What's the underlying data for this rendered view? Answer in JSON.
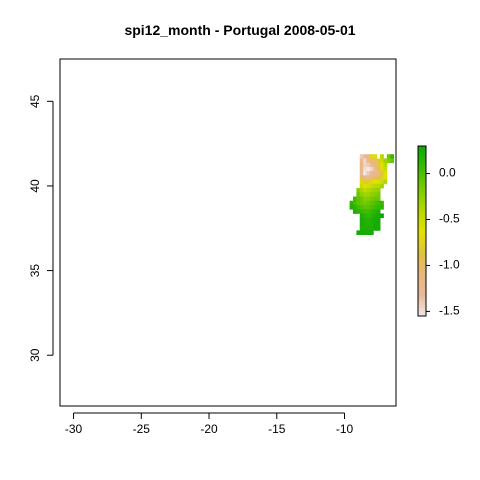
{
  "title": "spi12_month - Portugal 2008-05-01",
  "chart_data": {
    "type": "heatmap",
    "title": "spi12_month - Portugal 2008-05-01",
    "xlabel": "",
    "ylabel": "",
    "xlim": [
      -31.0,
      -6.2
    ],
    "ylim": [
      27.0,
      47.5
    ],
    "x_ticks": [
      -30,
      -25,
      -20,
      -15,
      -10
    ],
    "y_ticks": [
      30,
      35,
      40,
      45
    ],
    "grid": false,
    "legend": {
      "position": "right",
      "ticks": [
        0.0,
        -0.5,
        -1.0,
        -1.5
      ],
      "tick_labels": [
        "0.0",
        "-0.5",
        "-1.0",
        "-1.5"
      ],
      "range": [
        -1.55,
        0.3
      ],
      "colors": [
        "#f2e8e6",
        "#e9b99c",
        "#e8b87a",
        "#dfc23c",
        "#e4e100",
        "#b4d800",
        "#7ccb00",
        "#3bbb00",
        "#0ca708"
      ]
    },
    "cell_size_deg": 0.25,
    "rows": [
      {
        "lat": 41.75,
        "cells": [
          [
            -8.75,
            -1.4
          ],
          [
            -8.5,
            -1.3
          ],
          [
            -8.25,
            -1.1
          ],
          [
            -8.0,
            -0.7
          ],
          [
            -7.75,
            -0.6
          ],
          [
            -7.25,
            -0.4
          ],
          [
            -6.75,
            -0.1
          ],
          [
            -6.5,
            0.1
          ]
        ]
      },
      {
        "lat": 41.5,
        "cells": [
          [
            -8.75,
            -1.3
          ],
          [
            -8.5,
            -1.45
          ],
          [
            -8.25,
            -1.2
          ],
          [
            -8.0,
            -1.0
          ],
          [
            -7.75,
            -1.1
          ],
          [
            -7.5,
            -0.8
          ],
          [
            -7.25,
            -0.5
          ],
          [
            -7.0,
            -0.3
          ],
          [
            -6.75,
            -0.2
          ],
          [
            -6.5,
            -0.1
          ]
        ]
      },
      {
        "lat": 41.25,
        "cells": [
          [
            -8.75,
            -1.1
          ],
          [
            -8.5,
            -1.45
          ],
          [
            -8.25,
            -1.4
          ],
          [
            -8.0,
            -1.3
          ],
          [
            -7.75,
            -1.1
          ],
          [
            -7.5,
            -0.8
          ],
          [
            -7.25,
            -0.6
          ],
          [
            -7.0,
            -0.4
          ]
        ]
      },
      {
        "lat": 41.0,
        "cells": [
          [
            -8.75,
            -1.2
          ],
          [
            -8.5,
            -1.5
          ],
          [
            -8.25,
            -1.55
          ],
          [
            -8.0,
            -1.45
          ],
          [
            -7.75,
            -1.3
          ],
          [
            -7.5,
            -1.0
          ],
          [
            -7.25,
            -0.7
          ],
          [
            -7.0,
            -0.5
          ]
        ]
      },
      {
        "lat": 40.75,
        "cells": [
          [
            -8.75,
            -1.3
          ],
          [
            -8.5,
            -1.55
          ],
          [
            -8.25,
            -1.4
          ],
          [
            -8.0,
            -1.3
          ],
          [
            -7.75,
            -1.2
          ],
          [
            -7.5,
            -1.1
          ],
          [
            -7.25,
            -0.9
          ],
          [
            -7.0,
            -0.6
          ]
        ]
      },
      {
        "lat": 40.5,
        "cells": [
          [
            -8.75,
            -1.0
          ],
          [
            -8.5,
            -1.2
          ],
          [
            -8.25,
            -1.25
          ],
          [
            -8.0,
            -1.1
          ],
          [
            -7.75,
            -1.0
          ],
          [
            -7.5,
            -0.9
          ],
          [
            -7.25,
            -0.8
          ],
          [
            -7.0,
            -0.6
          ]
        ]
      },
      {
        "lat": 40.25,
        "cells": [
          [
            -8.75,
            -0.7
          ],
          [
            -8.5,
            -0.8
          ],
          [
            -8.25,
            -0.8
          ],
          [
            -8.0,
            -0.7
          ],
          [
            -7.75,
            -0.65
          ],
          [
            -7.5,
            -0.6
          ],
          [
            -7.25,
            -0.5
          ],
          [
            -7.0,
            -0.4
          ]
        ]
      },
      {
        "lat": 40.0,
        "cells": [
          [
            -8.75,
            -0.5
          ],
          [
            -8.5,
            -0.6
          ],
          [
            -8.25,
            -0.55
          ],
          [
            -8.0,
            -0.5
          ],
          [
            -7.75,
            -0.45
          ],
          [
            -7.5,
            -0.4
          ],
          [
            -7.25,
            -0.3
          ]
        ]
      },
      {
        "lat": 39.75,
        "cells": [
          [
            -9.0,
            -0.2
          ],
          [
            -8.75,
            -0.35
          ],
          [
            -8.5,
            -0.45
          ],
          [
            -8.25,
            -0.4
          ],
          [
            -8.0,
            -0.35
          ],
          [
            -7.75,
            -0.3
          ],
          [
            -7.5,
            -0.25
          ]
        ]
      },
      {
        "lat": 39.5,
        "cells": [
          [
            -9.0,
            -0.1
          ],
          [
            -8.75,
            -0.25
          ],
          [
            -8.5,
            -0.3
          ],
          [
            -8.25,
            -0.3
          ],
          [
            -8.0,
            -0.25
          ],
          [
            -7.75,
            -0.2
          ],
          [
            -7.5,
            -0.15
          ]
        ]
      },
      {
        "lat": 39.25,
        "cells": [
          [
            -9.25,
            0.05
          ],
          [
            -9.0,
            -0.05
          ],
          [
            -8.75,
            -0.1
          ],
          [
            -8.5,
            -0.2
          ],
          [
            -8.25,
            -0.2
          ],
          [
            -8.0,
            -0.15
          ],
          [
            -7.75,
            -0.1
          ],
          [
            -7.5,
            -0.1
          ]
        ]
      },
      {
        "lat": 39.0,
        "cells": [
          [
            -9.5,
            0.15
          ],
          [
            -9.25,
            0.05
          ],
          [
            -9.0,
            -0.05
          ],
          [
            -8.75,
            -0.1
          ],
          [
            -8.5,
            -0.15
          ],
          [
            -8.25,
            -0.1
          ],
          [
            -8.0,
            -0.05
          ],
          [
            -7.75,
            0.0
          ],
          [
            -7.5,
            0.05
          ],
          [
            -7.25,
            0.1
          ]
        ]
      },
      {
        "lat": 38.75,
        "cells": [
          [
            -9.5,
            0.2
          ],
          [
            -9.25,
            0.15
          ],
          [
            -9.0,
            0.05
          ],
          [
            -8.75,
            0.0
          ],
          [
            -8.5,
            -0.05
          ],
          [
            -8.25,
            -0.05
          ],
          [
            -8.0,
            0.0
          ],
          [
            -7.75,
            0.05
          ],
          [
            -7.5,
            0.1
          ],
          [
            -7.25,
            0.15
          ]
        ]
      },
      {
        "lat": 38.5,
        "cells": [
          [
            -9.25,
            0.2
          ],
          [
            -9.0,
            0.15
          ],
          [
            -8.75,
            0.1
          ],
          [
            -8.5,
            0.05
          ],
          [
            -8.25,
            0.05
          ],
          [
            -8.0,
            0.1
          ],
          [
            -7.75,
            0.15
          ],
          [
            -7.5,
            0.2
          ]
        ]
      },
      {
        "lat": 38.25,
        "cells": [
          [
            -8.75,
            0.2
          ],
          [
            -8.5,
            0.15
          ],
          [
            -8.25,
            0.1
          ],
          [
            -8.0,
            0.15
          ],
          [
            -7.75,
            0.2
          ],
          [
            -7.5,
            0.25
          ],
          [
            -7.25,
            0.3
          ]
        ]
      },
      {
        "lat": 38.0,
        "cells": [
          [
            -8.75,
            0.25
          ],
          [
            -8.5,
            0.2
          ],
          [
            -8.25,
            0.15
          ],
          [
            -8.0,
            0.2
          ],
          [
            -7.75,
            0.25
          ],
          [
            -7.5,
            0.25
          ]
        ]
      },
      {
        "lat": 37.75,
        "cells": [
          [
            -8.75,
            0.25
          ],
          [
            -8.5,
            0.2
          ],
          [
            -8.25,
            0.2
          ],
          [
            -8.0,
            0.2
          ],
          [
            -7.75,
            0.25
          ],
          [
            -7.5,
            0.25
          ]
        ]
      },
      {
        "lat": 37.5,
        "cells": [
          [
            -8.75,
            0.2
          ],
          [
            -8.5,
            0.2
          ],
          [
            -8.25,
            0.2
          ],
          [
            -8.0,
            0.2
          ],
          [
            -7.75,
            0.25
          ],
          [
            -7.5,
            0.25
          ]
        ]
      },
      {
        "lat": 37.25,
        "cells": [
          [
            -9.0,
            0.25
          ],
          [
            -8.75,
            0.25
          ],
          [
            -8.5,
            0.25
          ],
          [
            -8.25,
            0.25
          ],
          [
            -8.0,
            0.25
          ]
        ]
      }
    ]
  }
}
